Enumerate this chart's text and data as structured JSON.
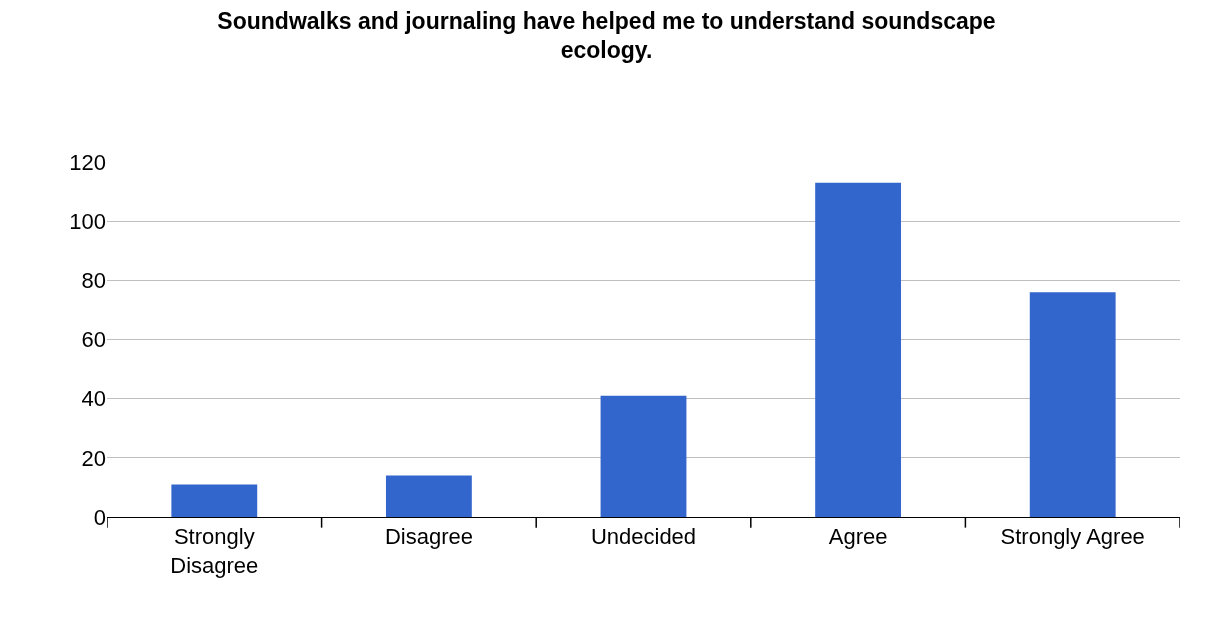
{
  "chart_data": {
    "type": "bar",
    "title": "Soundwalks and journaling have helped me to understand soundscape ecology.",
    "categories": [
      "Strongly Disagree",
      "Disagree",
      "Undecided",
      "Agree",
      "Strongly Agree"
    ],
    "values": [
      11,
      14,
      41,
      113,
      76
    ],
    "color": "#3366cc",
    "ylim": [
      0,
      120
    ],
    "yticks": [
      0,
      20,
      40,
      60,
      80,
      100,
      120
    ],
    "grid": "y"
  }
}
